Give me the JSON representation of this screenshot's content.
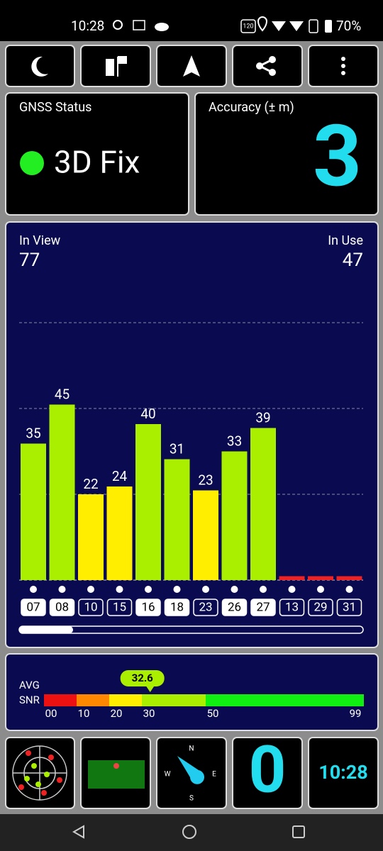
{
  "status_bar": {
    "time": "10:28",
    "refresh": "120",
    "battery": "70%"
  },
  "gnss_status": {
    "title": "GNSS Status",
    "value": "3D Fix"
  },
  "accuracy": {
    "title": "Accuracy (± m)",
    "value": 3
  },
  "chart_data": {
    "type": "bar",
    "in_view_label": "In View",
    "in_view": 77,
    "in_use_label": "In Use",
    "in_use": 47,
    "categories": [
      "07",
      "08",
      "10",
      "15",
      "16",
      "18",
      "23",
      "26",
      "27",
      "13",
      "29",
      "31"
    ],
    "values": [
      35,
      45,
      22,
      24,
      40,
      31,
      23,
      33,
      39,
      1,
      1,
      1
    ],
    "colors": [
      "#aaee00",
      "#aaee00",
      "#ffee00",
      "#ffee00",
      "#aaee00",
      "#aaee00",
      "#ffee00",
      "#aaee00",
      "#aaee00",
      "#ee2222",
      "#ee2222",
      "#ee2222"
    ],
    "used": [
      true,
      true,
      false,
      false,
      true,
      true,
      false,
      true,
      true,
      false,
      false,
      false
    ],
    "ylim": [
      0,
      66
    ],
    "yticks": [
      22,
      44,
      66
    ],
    "grid": true
  },
  "snr": {
    "avg_label": "AVG",
    "snr_label": "SNR",
    "average": 32.6,
    "ticks": [
      {
        "value": 0,
        "label": "00"
      },
      10,
      20,
      30,
      50,
      99
    ],
    "colors": [
      "#ee1111",
      "#ff8800",
      "#ffee00",
      "#aaee00",
      "#11ee11"
    ]
  },
  "bottom": {
    "count": 0,
    "clock": "10:28",
    "compass": [
      "N",
      "E",
      "S",
      "W"
    ]
  }
}
